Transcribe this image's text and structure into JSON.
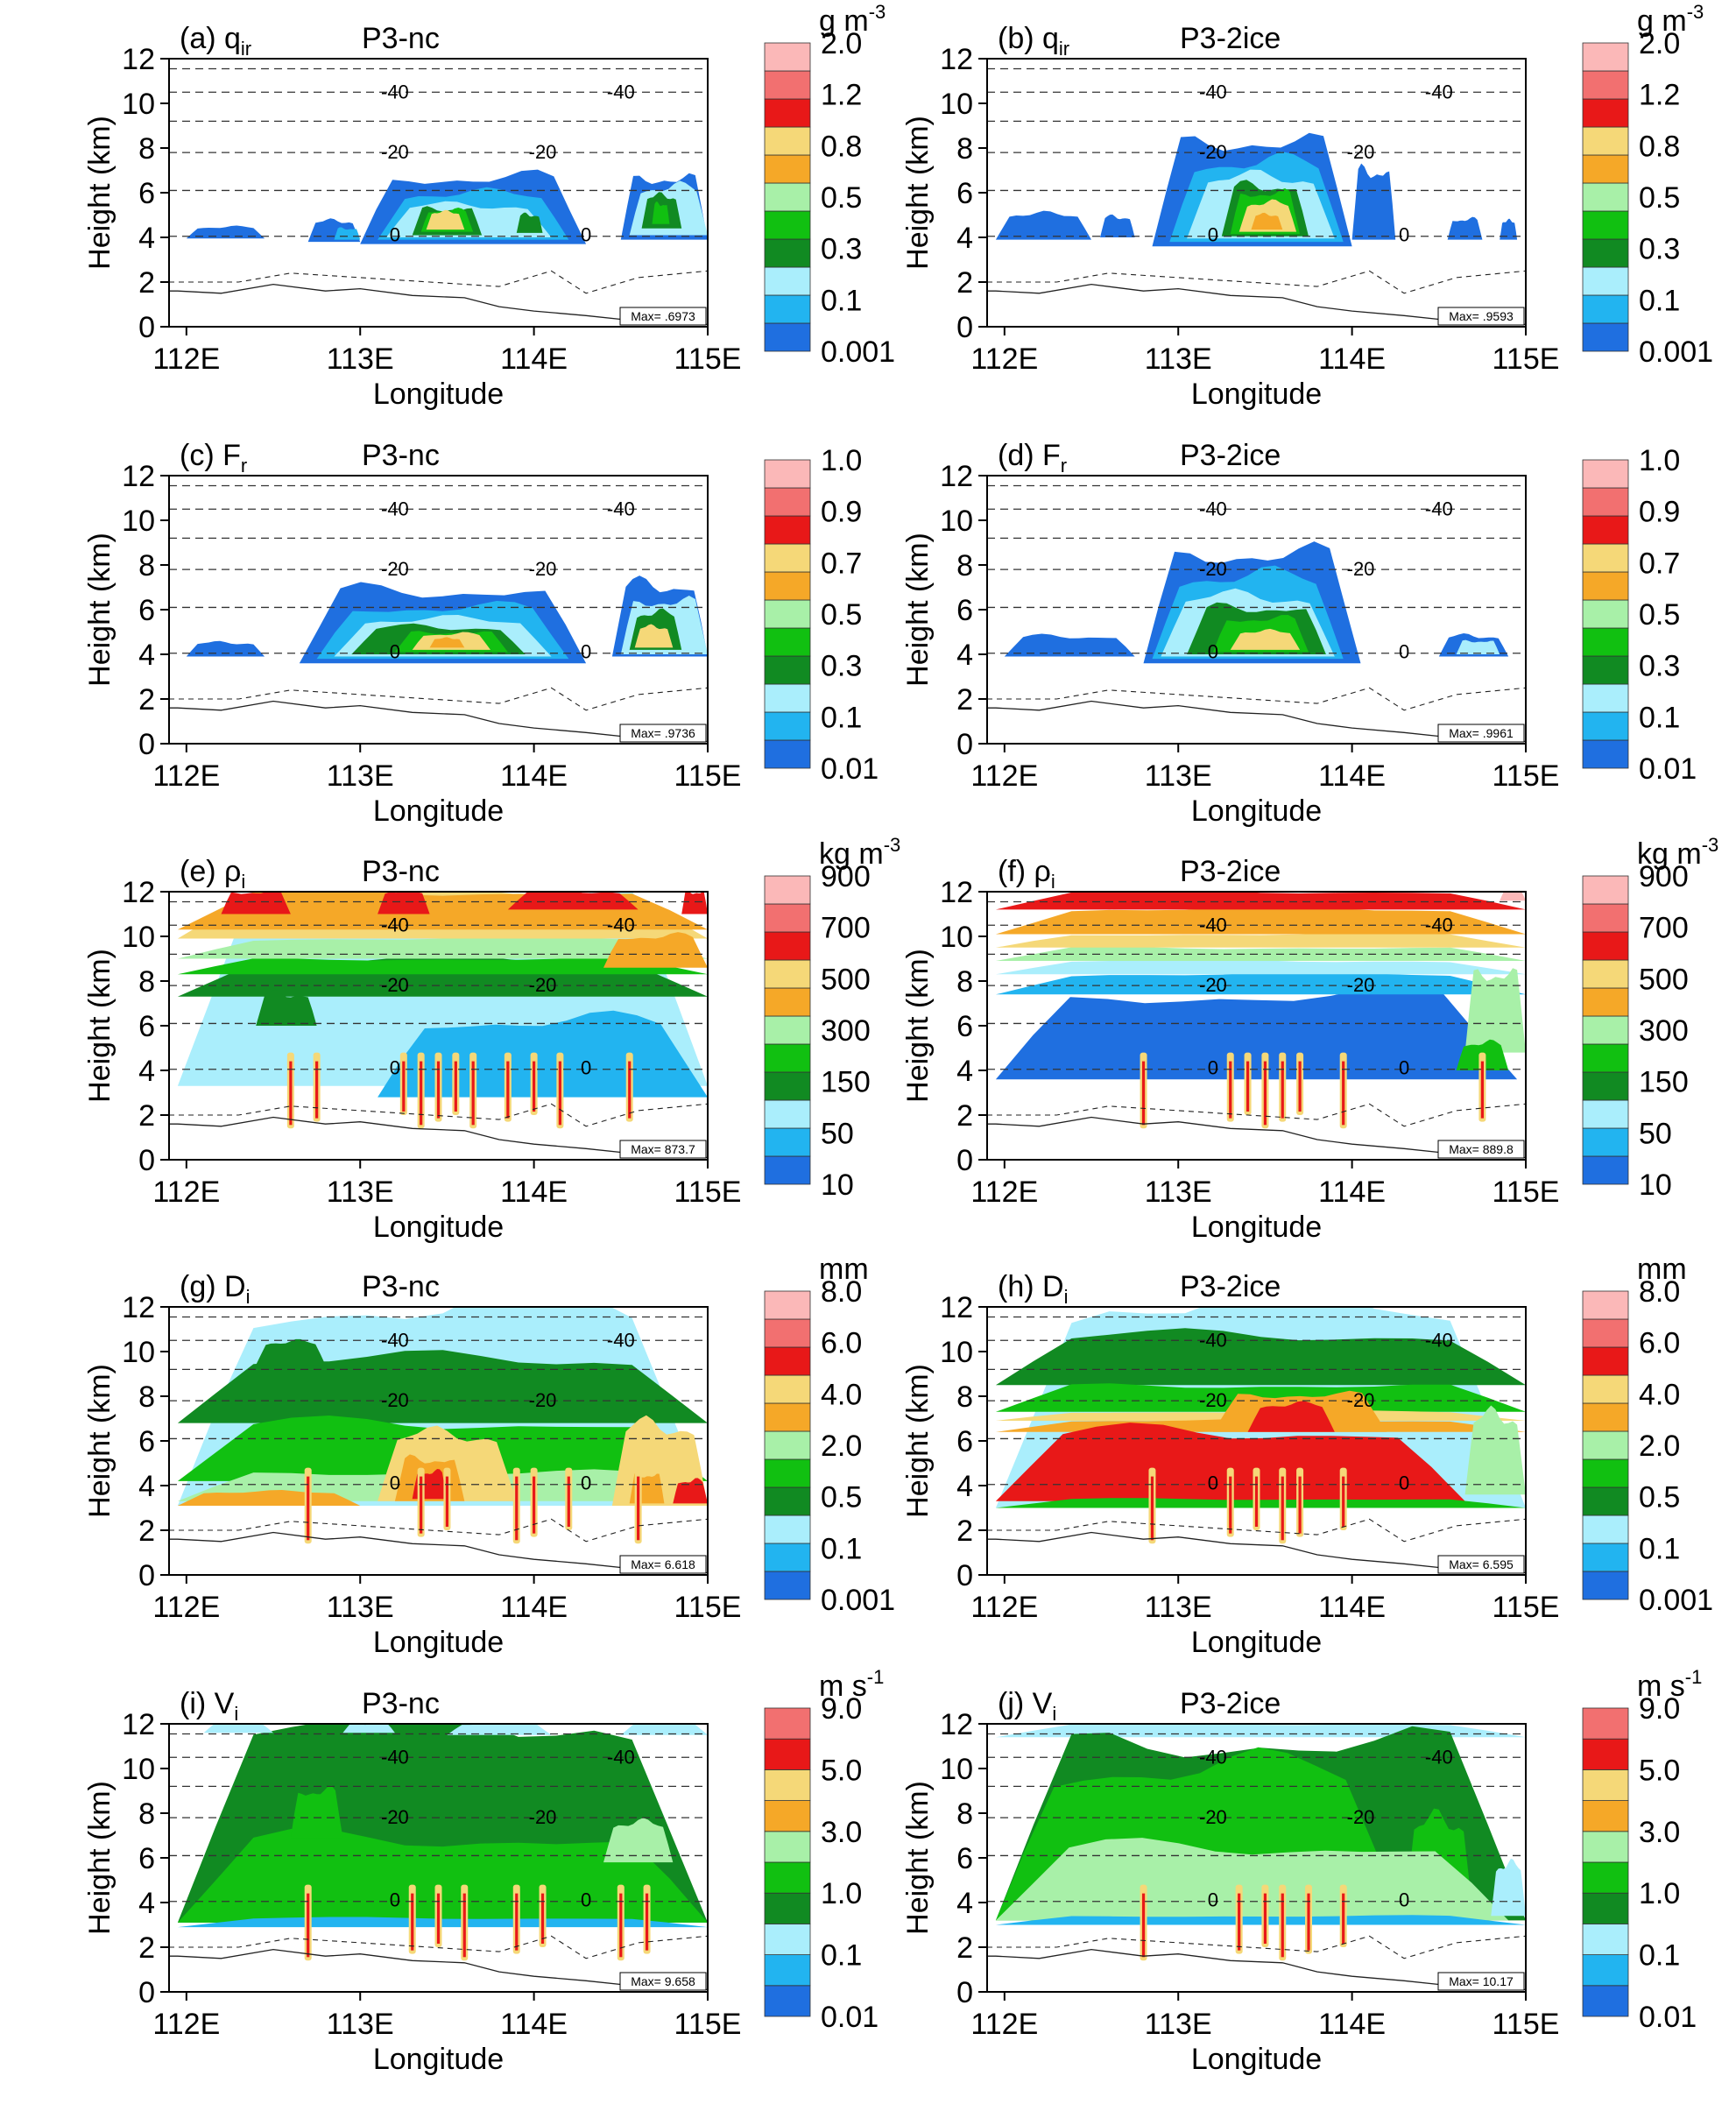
{
  "figure": {
    "panels": [
      {
        "letter": "(a)",
        "var": "q",
        "sub": "ir",
        "scheme": "P3-nc",
        "unit": "g m",
        "unit_sup": "-3",
        "levels": [
          "0.001",
          "0.1",
          "0.3",
          "0.5",
          "0.8",
          "1.2",
          "2.0"
        ],
        "max_label": "Max= .6973",
        "field": "q"
      },
      {
        "letter": "(b)",
        "var": "q",
        "sub": "ir",
        "scheme": "P3-2ice",
        "unit": "g m",
        "unit_sup": "-3",
        "levels": [
          "0.001",
          "0.1",
          "0.3",
          "0.5",
          "0.8",
          "1.2",
          "2.0"
        ],
        "max_label": "Max= .9593",
        "field": "q"
      },
      {
        "letter": "(c)",
        "var": "F",
        "sub": "r",
        "scheme": "P3-nc",
        "unit": "",
        "unit_sup": "",
        "levels": [
          "0.01",
          "0.1",
          "0.3",
          "0.5",
          "0.7",
          "0.9",
          "1.0"
        ],
        "max_label": "Max= .9736",
        "field": "f"
      },
      {
        "letter": "(d)",
        "var": "F",
        "sub": "r",
        "scheme": "P3-2ice",
        "unit": "",
        "unit_sup": "",
        "levels": [
          "0.01",
          "0.1",
          "0.3",
          "0.5",
          "0.7",
          "0.9",
          "1.0"
        ],
        "max_label": "Max= .9961",
        "field": "f"
      },
      {
        "letter": "(e)",
        "var": "ρ",
        "sub": "i",
        "scheme": "P3-nc",
        "unit": "kg m",
        "unit_sup": "-3",
        "levels": [
          "10",
          "50",
          "150",
          "300",
          "500",
          "700",
          "900"
        ],
        "max_label": "Max= 873.7",
        "field": "rho_nc"
      },
      {
        "letter": "(f)",
        "var": "ρ",
        "sub": "i",
        "scheme": "P3-2ice",
        "unit": "kg m",
        "unit_sup": "-3",
        "levels": [
          "10",
          "50",
          "150",
          "300",
          "500",
          "700",
          "900"
        ],
        "max_label": "Max= 889.8",
        "field": "rho_2i"
      },
      {
        "letter": "(g)",
        "var": "D",
        "sub": "i",
        "scheme": "P3-nc",
        "unit": "mm",
        "unit_sup": "",
        "levels": [
          "0.001",
          "0.1",
          "0.5",
          "2.0",
          "4.0",
          "6.0",
          "8.0"
        ],
        "max_label": "Max= 6.618",
        "field": "d_nc"
      },
      {
        "letter": "(h)",
        "var": "D",
        "sub": "i",
        "scheme": "P3-2ice",
        "unit": "mm",
        "unit_sup": "",
        "levels": [
          "0.001",
          "0.1",
          "0.5",
          "2.0",
          "4.0",
          "6.0",
          "8.0"
        ],
        "max_label": "Max= 6.595",
        "field": "d_2i"
      },
      {
        "letter": "(i)",
        "var": "V",
        "sub": "i",
        "scheme": "P3-nc",
        "unit": "m s",
        "unit_sup": "-1",
        "levels": [
          "0.01",
          "0.1",
          "1.0",
          "3.0",
          "5.0",
          "9.0"
        ],
        "max_label": "Max= 9.658",
        "field": "v_nc"
      },
      {
        "letter": "(j)",
        "var": "V",
        "sub": "i",
        "scheme": "P3-2ice",
        "unit": "m s",
        "unit_sup": "-1",
        "levels": [
          "0.01",
          "0.1",
          "1.0",
          "3.0",
          "5.0",
          "9.0"
        ],
        "max_label": "Max= 10.17",
        "field": "v_2i"
      }
    ]
  },
  "chart_data": {
    "type": "contour",
    "xlabel": "Longitude",
    "ylabel": "Height (km)",
    "xlim": [
      111.9,
      115.0
    ],
    "ylim": [
      0,
      12
    ],
    "x_ticks": [
      "112E",
      "113E",
      "114E",
      "115E"
    ],
    "x_tick_values": [
      112,
      113,
      114,
      115
    ],
    "y_ticks": [
      0,
      2,
      4,
      6,
      8,
      10,
      12
    ],
    "isotherm_labels": [
      {
        "text": "-40",
        "lon": 113.2,
        "km": 10.5
      },
      {
        "text": "-40",
        "lon": 114.5,
        "km": 10.5
      },
      {
        "text": "-20",
        "lon": 113.2,
        "km": 7.8
      },
      {
        "text": "-20",
        "lon": 114.05,
        "km": 7.8
      },
      {
        "text": "0",
        "lon": 113.2,
        "km": 4.1
      },
      {
        "text": "0",
        "lon": 114.3,
        "km": 4.1
      }
    ],
    "color_scale": [
      "#1f6fe0",
      "#22b4f0",
      "#aaeefc",
      "#118a22",
      "#11c011",
      "#a8f0a8",
      "#f5a828",
      "#f5d878",
      "#e81818",
      "#f27070",
      "#fbb8b8"
    ]
  }
}
